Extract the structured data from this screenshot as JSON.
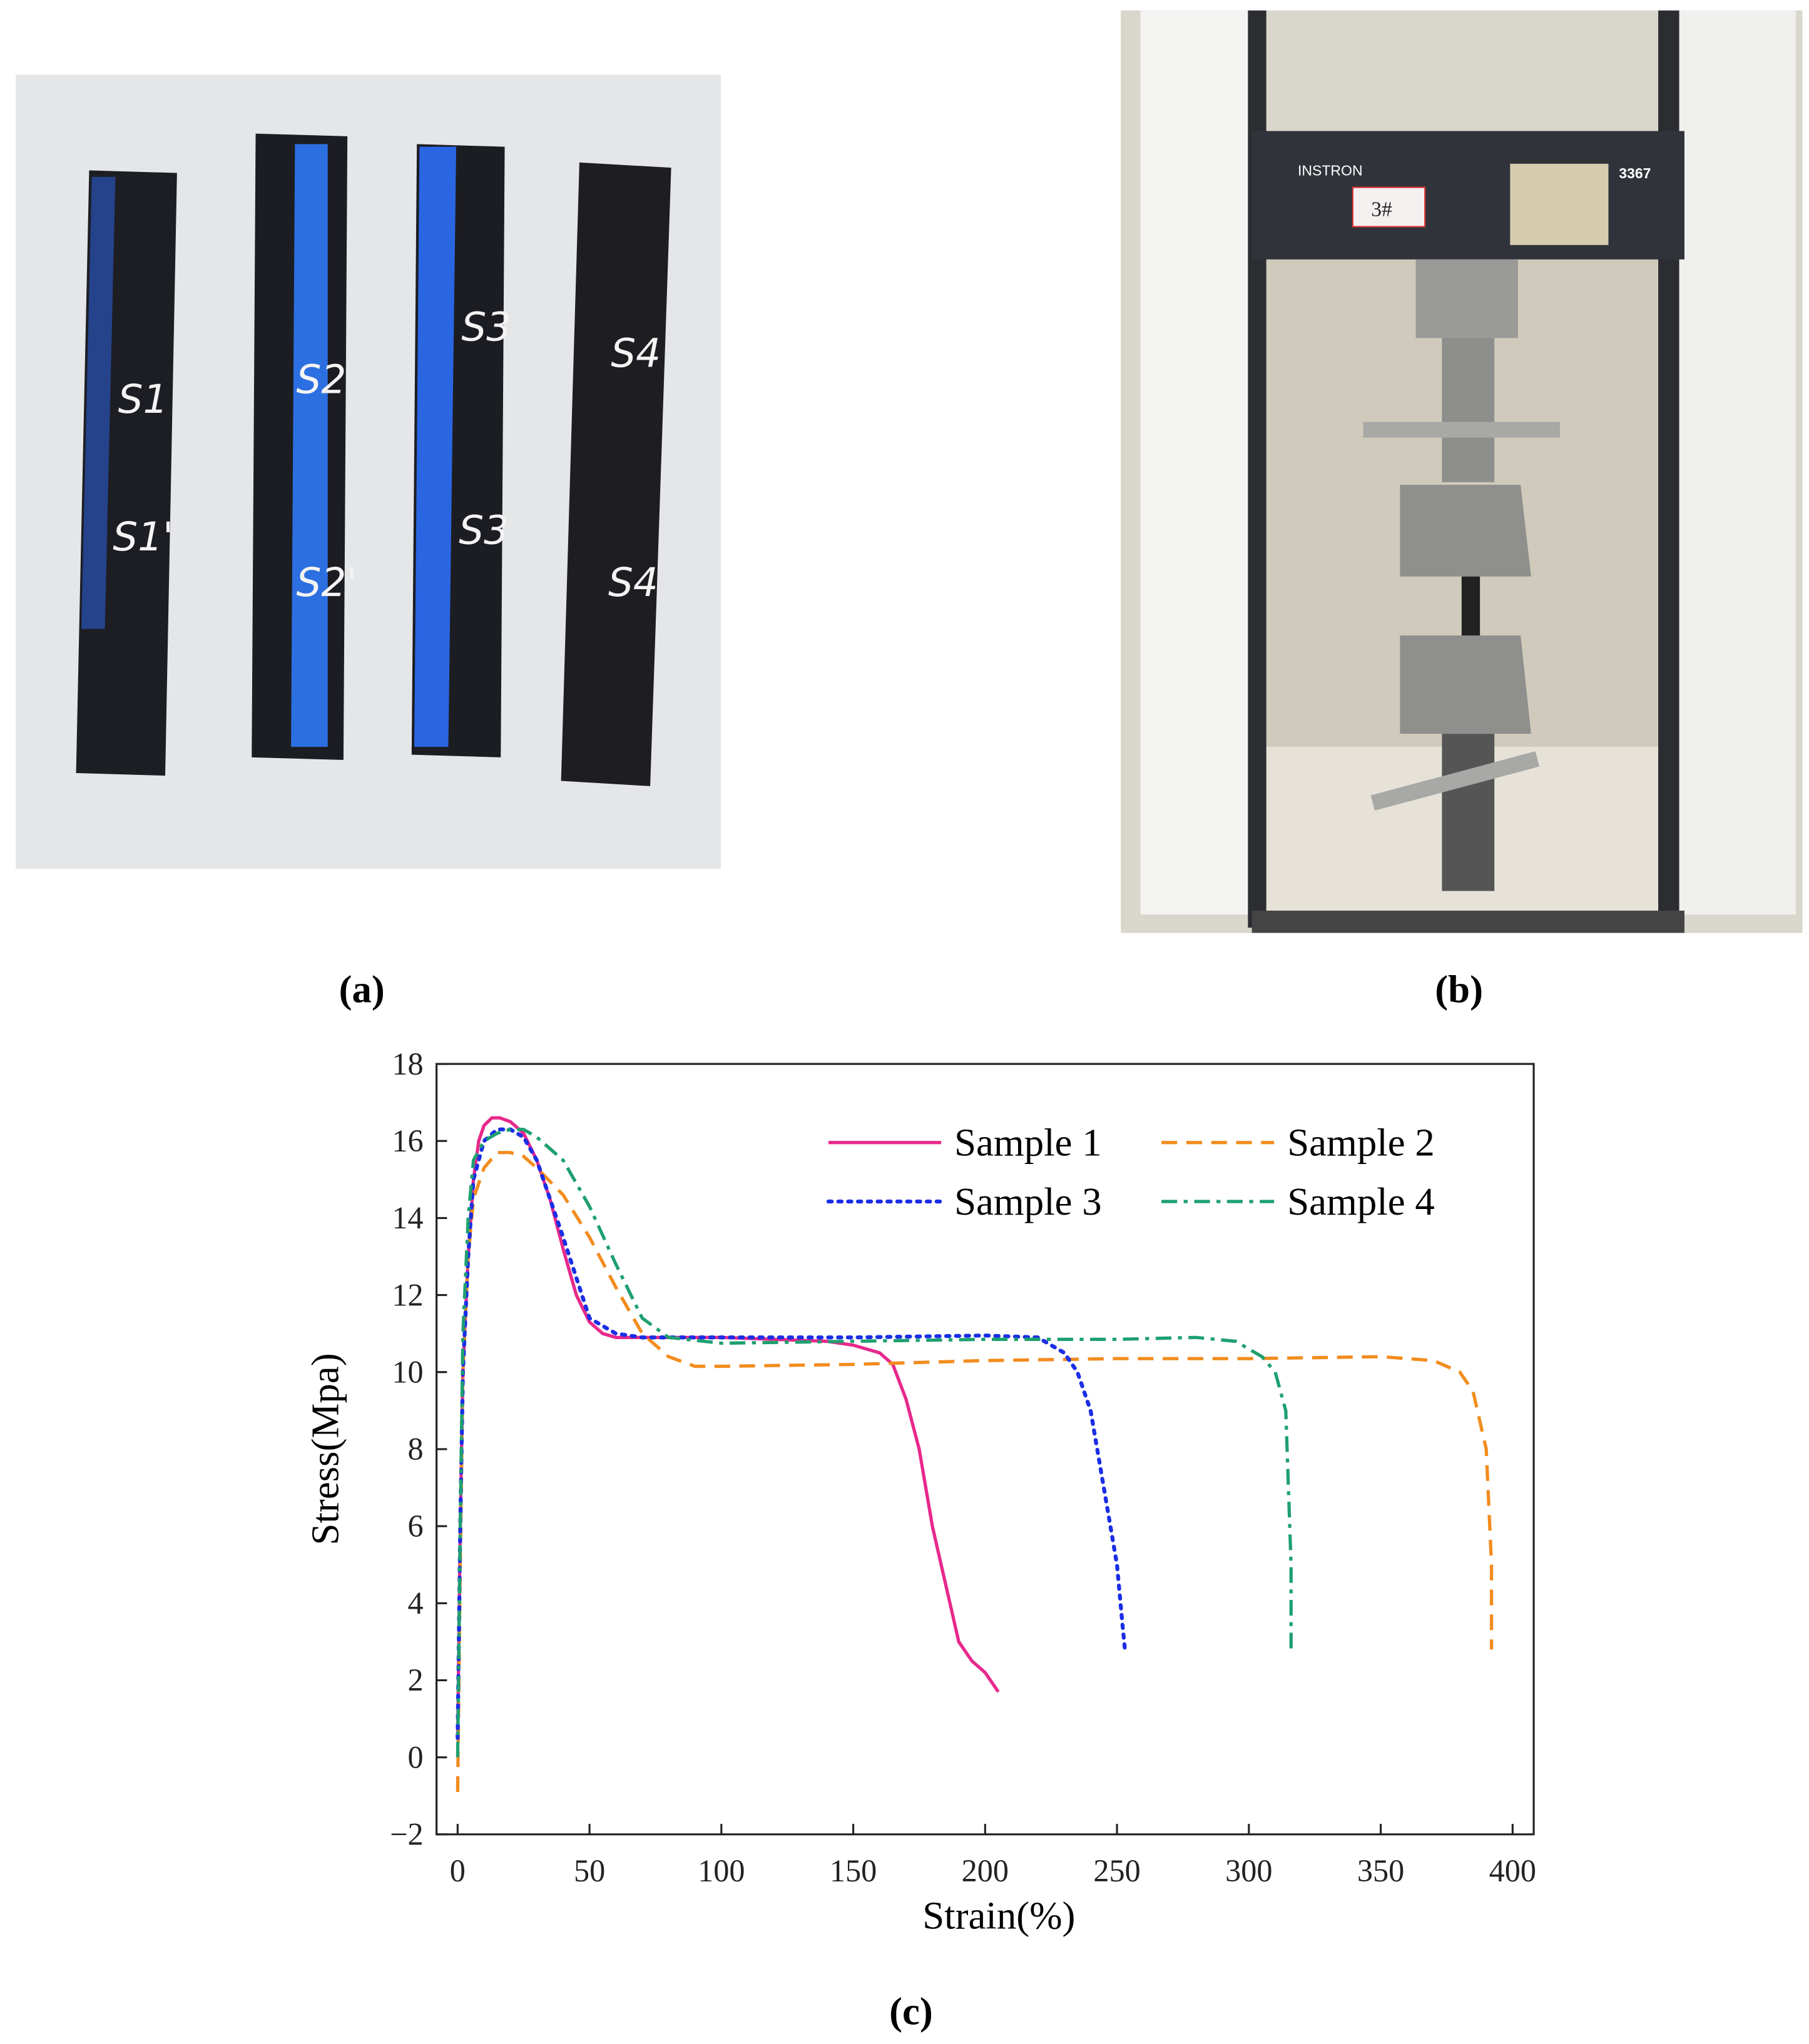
{
  "figure": {
    "panel_labels": [
      "(a)",
      "(b)",
      "(c)"
    ],
    "photo_a": {
      "strip_labels": [
        "S1",
        "S1'",
        "S2",
        "S2'",
        "S3",
        "S3",
        "S4",
        "S4"
      ]
    },
    "photo_b": {
      "brand": "INSTRON",
      "model": "3367",
      "tag": "3#"
    }
  },
  "chart_data": {
    "type": "line",
    "x_label": "Strain(%)",
    "y_label": "Stress(Mpa)",
    "xlim": [
      -8,
      408
    ],
    "ylim": [
      -2,
      18
    ],
    "xticks": [
      0,
      50,
      100,
      150,
      200,
      250,
      300,
      350,
      400
    ],
    "yticks": [
      {
        "value": -2,
        "label": "−2"
      },
      0,
      2,
      4,
      6,
      8,
      10,
      12,
      14,
      16,
      18
    ],
    "legend": "upper right",
    "series": [
      {
        "name": "Sample 1",
        "color": "#e8288c",
        "dash": "solid",
        "x": [
          0,
          1,
          2,
          4,
          6,
          8,
          10,
          13,
          16,
          20,
          25,
          30,
          35,
          40,
          45,
          50,
          55,
          60,
          70,
          80,
          100,
          120,
          140,
          150,
          160,
          165,
          170,
          175,
          180,
          185,
          190,
          195,
          200,
          205
        ],
        "values": [
          0.5,
          6,
          10,
          13,
          15,
          16,
          16.4,
          16.6,
          16.6,
          16.5,
          16.2,
          15.5,
          14.5,
          13.2,
          12,
          11.3,
          11,
          10.9,
          10.9,
          10.9,
          10.9,
          10.85,
          10.8,
          10.7,
          10.5,
          10.2,
          9.3,
          8,
          6,
          4.5,
          3,
          2.5,
          2.2,
          1.7
        ]
      },
      {
        "name": "Sample 2",
        "color": "#f28c1e",
        "dash": "dashed",
        "x": [
          0,
          1,
          2,
          4,
          6,
          10,
          15,
          20,
          25,
          30,
          40,
          50,
          60,
          70,
          80,
          90,
          100,
          150,
          200,
          250,
          300,
          350,
          370,
          380,
          385,
          390,
          392,
          392
        ],
        "values": [
          -0.9,
          5,
          10,
          13,
          14.5,
          15.3,
          15.7,
          15.7,
          15.6,
          15.3,
          14.6,
          13.5,
          12.2,
          11,
          10.4,
          10.15,
          10.15,
          10.2,
          10.3,
          10.35,
          10.35,
          10.4,
          10.3,
          10,
          9.5,
          8,
          5,
          2.8
        ]
      },
      {
        "name": "Sample 3",
        "color": "#1a2ee6",
        "dash": "dotted",
        "x": [
          0,
          1,
          2,
          4,
          6,
          10,
          15,
          20,
          25,
          30,
          40,
          50,
          60,
          70,
          100,
          150,
          200,
          220,
          230,
          235,
          240,
          245,
          250,
          252,
          253
        ],
        "values": [
          0.5,
          6,
          10,
          13,
          15,
          16,
          16.3,
          16.3,
          16.1,
          15.5,
          13.5,
          11.4,
          11,
          10.9,
          10.9,
          10.9,
          10.95,
          10.9,
          10.5,
          10,
          9,
          7,
          5,
          3.5,
          2.8
        ]
      },
      {
        "name": "Sample 4",
        "color": "#1ea070",
        "dash": "dashdot",
        "x": [
          0,
          1,
          2,
          4,
          6,
          10,
          15,
          20,
          25,
          30,
          40,
          50,
          60,
          70,
          80,
          100,
          150,
          200,
          250,
          280,
          295,
          305,
          310,
          314,
          316,
          316
        ],
        "values": [
          0,
          6,
          11,
          14,
          15.5,
          16,
          16.2,
          16.3,
          16.3,
          16.1,
          15.5,
          14.3,
          12.8,
          11.4,
          10.9,
          10.75,
          10.8,
          10.85,
          10.85,
          10.9,
          10.8,
          10.4,
          10,
          9,
          5,
          2.8
        ]
      }
    ]
  }
}
